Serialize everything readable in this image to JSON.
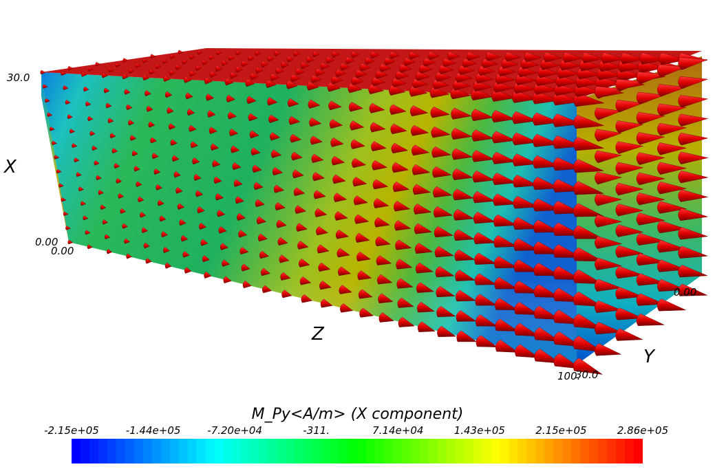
{
  "axes": {
    "x_label": "X",
    "y_label": "Y",
    "z_label": "Z"
  },
  "ticks": {
    "x_max": "30.0",
    "x_min": "0.00",
    "z_min": "0.00",
    "y_min": "0.00",
    "z_max": "100.",
    "y_max": "30.0"
  },
  "colorbar": {
    "title": "M_Py<A/m> (X component)",
    "labels": [
      "-2.15e+05",
      "-1.44e+05",
      "-7.20e+04",
      "-311.",
      "7.14e+04",
      "1.43e+05",
      "2.15e+05",
      "2.86e+05"
    ],
    "colors": [
      "#0000ff",
      "#00ffff",
      "#00ff00",
      "#ffff00",
      "#ff0000"
    ]
  },
  "glyph_color": "#dd0000",
  "arrow_glyph": "cone"
}
